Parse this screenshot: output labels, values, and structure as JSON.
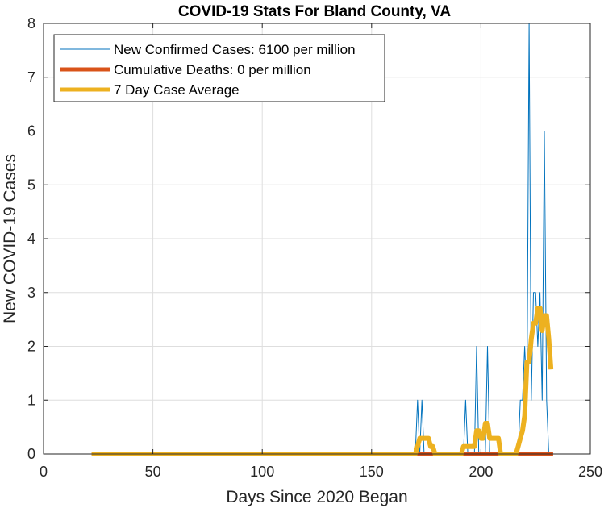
{
  "chart_data": {
    "type": "line",
    "title": "COVID-19 Stats For Bland County, VA",
    "xlabel": "Days Since 2020 Began",
    "ylabel": "New COVID-19 Cases",
    "xlim": [
      0,
      250
    ],
    "ylim": [
      0,
      8
    ],
    "xticks": [
      "0",
      "50",
      "100",
      "150",
      "200",
      "250"
    ],
    "yticks": [
      "0",
      "1",
      "2",
      "3",
      "4",
      "5",
      "6",
      "7",
      "8"
    ],
    "grid": true,
    "legend_position": "top-left",
    "series": [
      {
        "name": "New Confirmed Cases: 6100 per million",
        "color": "#0072bd",
        "style": "thin",
        "x": [
          22,
          170,
          171,
          172,
          173,
          174,
          175,
          192,
          193,
          194,
          197,
          198,
          199,
          202,
          203,
          204,
          217,
          218,
          219,
          220,
          221,
          222,
          223,
          224,
          225,
          226,
          227,
          228,
          229,
          230,
          231,
          232
        ],
        "y": [
          0,
          0,
          1,
          0,
          1,
          0,
          0,
          0,
          1,
          0,
          0,
          2,
          0,
          0,
          2,
          0,
          0,
          1,
          1,
          2,
          1,
          8,
          1,
          3,
          3,
          2,
          3,
          1,
          6,
          1,
          0,
          0
        ]
      },
      {
        "name": "Cumulative Deaths: 0 per million",
        "color": "#d95319",
        "style": "thick",
        "x": [
          22,
          233
        ],
        "y": [
          0,
          0
        ]
      },
      {
        "name": "7 Day Case Average",
        "color": "#edb120",
        "style": "thick",
        "x": [
          22,
          170,
          171,
          172,
          173,
          174,
          175,
          176,
          177,
          178,
          179,
          180,
          191,
          192,
          193,
          194,
          195,
          196,
          197,
          198,
          199,
          200,
          201,
          202,
          203,
          204,
          205,
          206,
          207,
          208,
          209,
          210,
          211,
          216,
          217,
          218,
          219,
          220,
          221,
          222,
          223,
          224,
          225,
          226,
          227,
          228,
          229,
          230,
          231,
          232
        ],
        "y": [
          0,
          0,
          0.14,
          0.29,
          0.29,
          0.29,
          0.29,
          0.29,
          0.14,
          0.14,
          0,
          0,
          0,
          0.14,
          0.14,
          0.14,
          0.14,
          0.14,
          0.14,
          0.43,
          0.43,
          0.29,
          0.29,
          0.57,
          0.57,
          0.29,
          0.29,
          0.29,
          0.29,
          0.29,
          0,
          0,
          0,
          0,
          0.14,
          0.29,
          0.43,
          0.71,
          1.71,
          1.71,
          2.14,
          2.43,
          2.43,
          2.71,
          2.71,
          2.29,
          2.57,
          2.57,
          2.14,
          1.57
        ]
      }
    ]
  }
}
